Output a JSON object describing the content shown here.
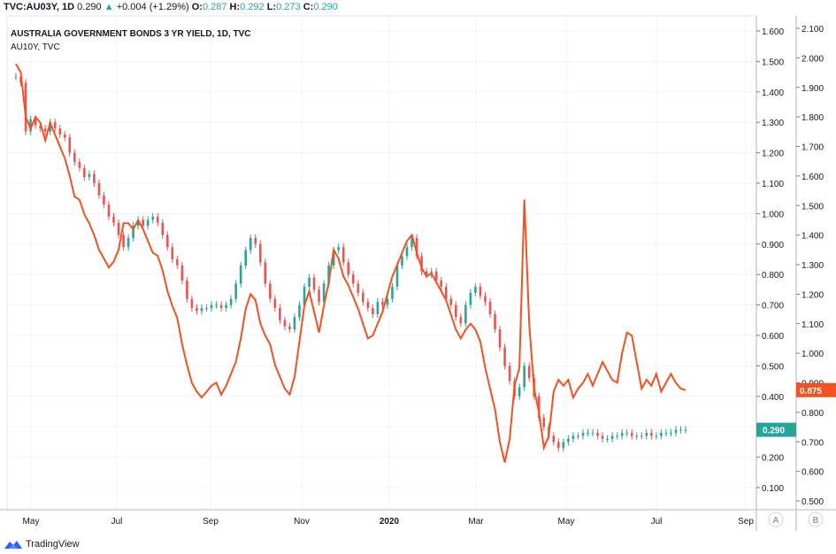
{
  "header": {
    "symbol": "TVC:AU03Y, 1D",
    "last": "0.290",
    "arrow": "▲",
    "change": "+0.004 (+1.29%)",
    "o_label": "O:",
    "o": "0.287",
    "h_label": "H:",
    "h": "0.292",
    "l_label": "L:",
    "l": "0.273",
    "c_label": "C:",
    "c": "0.290"
  },
  "legend": {
    "title": "AUSTRALIA GOVERNMENT BONDS 3 YR YIELD, 1D, TVC",
    "compare": "AU10Y, TVC"
  },
  "footer": {
    "brand": "TradingView"
  },
  "chart_data": {
    "type": "line",
    "x_ticks": [
      "May",
      "Jul",
      "Sep",
      "Nov",
      "2020",
      "Mar",
      "May",
      "Jul",
      "Sep"
    ],
    "scale_a_label": "A",
    "scale_b_label": "B",
    "left_axis": {
      "ticks": [
        "0.100",
        "0.200",
        "0.300",
        "0.400",
        "0.500",
        "0.600",
        "0.700",
        "0.800",
        "0.900",
        "1.000",
        "1.100",
        "1.200",
        "1.300",
        "1.400",
        "1.500",
        "1.600"
      ],
      "range": [
        0.05,
        1.65
      ]
    },
    "right_axis": {
      "ticks": [
        "0.500",
        "0.600",
        "0.700",
        "0.800",
        "0.900",
        "1.000",
        "1.100",
        "1.200",
        "1.300",
        "1.400",
        "1.500",
        "1.600",
        "1.700",
        "1.800",
        "1.900",
        "2.000",
        "2.100"
      ],
      "range": [
        0.475,
        2.125
      ]
    },
    "price_labels": {
      "au10y": {
        "value": "0.875",
        "color": "#f4511e"
      },
      "au03y": {
        "value": "0.290",
        "color": "#26a69a"
      }
    },
    "series": [
      {
        "name": "AU03Y",
        "color_up": "#26a69a",
        "color_down": "#ef5350",
        "axis": "left",
        "points": [
          [
            0,
            1.45
          ],
          [
            2,
            1.43
          ],
          [
            4,
            1.27
          ],
          [
            6,
            1.31
          ],
          [
            8,
            1.29
          ],
          [
            10,
            1.28
          ],
          [
            12,
            1.27
          ],
          [
            14,
            1.3
          ],
          [
            16,
            1.28
          ],
          [
            18,
            1.26
          ],
          [
            20,
            1.25
          ],
          [
            22,
            1.2
          ],
          [
            24,
            1.17
          ],
          [
            26,
            1.15
          ],
          [
            28,
            1.12
          ],
          [
            30,
            1.13
          ],
          [
            32,
            1.1
          ],
          [
            34,
            1.06
          ],
          [
            36,
            1.03
          ],
          [
            38,
            0.99
          ],
          [
            40,
            0.97
          ],
          [
            42,
            0.93
          ],
          [
            44,
            0.89
          ],
          [
            46,
            0.92
          ],
          [
            48,
            0.96
          ],
          [
            50,
            0.98
          ],
          [
            52,
            0.96
          ],
          [
            54,
            0.98
          ],
          [
            56,
            0.99
          ],
          [
            58,
            0.97
          ],
          [
            60,
            0.93
          ],
          [
            62,
            0.89
          ],
          [
            64,
            0.85
          ],
          [
            66,
            0.83
          ],
          [
            68,
            0.78
          ],
          [
            70,
            0.72
          ],
          [
            72,
            0.69
          ],
          [
            74,
            0.68
          ],
          [
            76,
            0.69
          ],
          [
            78,
            0.69
          ],
          [
            80,
            0.7
          ],
          [
            82,
            0.7
          ],
          [
            84,
            0.69
          ],
          [
            86,
            0.7
          ],
          [
            88,
            0.72
          ],
          [
            90,
            0.77
          ],
          [
            92,
            0.83
          ],
          [
            94,
            0.88
          ],
          [
            96,
            0.92
          ],
          [
            98,
            0.9
          ],
          [
            100,
            0.84
          ],
          [
            102,
            0.77
          ],
          [
            104,
            0.72
          ],
          [
            106,
            0.69
          ],
          [
            108,
            0.65
          ],
          [
            110,
            0.63
          ],
          [
            112,
            0.62
          ],
          [
            114,
            0.66
          ],
          [
            116,
            0.7
          ],
          [
            118,
            0.76
          ],
          [
            120,
            0.79
          ],
          [
            122,
            0.75
          ],
          [
            124,
            0.71
          ],
          [
            126,
            0.77
          ],
          [
            128,
            0.83
          ],
          [
            130,
            0.88
          ],
          [
            132,
            0.89
          ],
          [
            134,
            0.84
          ],
          [
            136,
            0.8
          ],
          [
            138,
            0.77
          ],
          [
            140,
            0.74
          ],
          [
            142,
            0.71
          ],
          [
            144,
            0.69
          ],
          [
            146,
            0.67
          ],
          [
            148,
            0.71
          ],
          [
            150,
            0.7
          ],
          [
            152,
            0.72
          ],
          [
            154,
            0.76
          ],
          [
            156,
            0.83
          ],
          [
            158,
            0.86
          ],
          [
            160,
            0.89
          ],
          [
            162,
            0.92
          ],
          [
            164,
            0.86
          ],
          [
            166,
            0.81
          ],
          [
            168,
            0.8
          ],
          [
            170,
            0.81
          ],
          [
            172,
            0.78
          ],
          [
            174,
            0.76
          ],
          [
            176,
            0.72
          ],
          [
            178,
            0.7
          ],
          [
            180,
            0.66
          ],
          [
            182,
            0.64
          ],
          [
            184,
            0.7
          ],
          [
            186,
            0.74
          ],
          [
            188,
            0.76
          ],
          [
            190,
            0.73
          ],
          [
            192,
            0.71
          ],
          [
            194,
            0.67
          ],
          [
            196,
            0.62
          ],
          [
            198,
            0.56
          ],
          [
            200,
            0.5
          ],
          [
            202,
            0.45
          ],
          [
            204,
            0.4
          ],
          [
            206,
            0.43
          ],
          [
            208,
            0.5
          ],
          [
            210,
            0.46
          ],
          [
            212,
            0.4
          ],
          [
            214,
            0.33
          ],
          [
            216,
            0.3
          ],
          [
            218,
            0.27
          ],
          [
            220,
            0.25
          ],
          [
            222,
            0.23
          ],
          [
            224,
            0.25
          ],
          [
            226,
            0.26
          ],
          [
            228,
            0.27
          ],
          [
            230,
            0.27
          ],
          [
            232,
            0.28
          ],
          [
            234,
            0.28
          ],
          [
            236,
            0.28
          ],
          [
            238,
            0.27
          ],
          [
            240,
            0.26
          ],
          [
            242,
            0.26
          ],
          [
            244,
            0.27
          ],
          [
            246,
            0.27
          ],
          [
            248,
            0.28
          ],
          [
            250,
            0.28
          ],
          [
            252,
            0.27
          ],
          [
            254,
            0.27
          ],
          [
            256,
            0.27
          ],
          [
            258,
            0.28
          ],
          [
            260,
            0.27
          ],
          [
            262,
            0.27
          ],
          [
            264,
            0.28
          ],
          [
            266,
            0.28
          ],
          [
            268,
            0.28
          ],
          [
            270,
            0.29
          ],
          [
            272,
            0.29
          ],
          [
            274,
            0.29
          ]
        ]
      },
      {
        "name": "AU10Y",
        "color": "#f4511e",
        "axis": "right",
        "points": [
          [
            0,
            1.98
          ],
          [
            2,
            1.95
          ],
          [
            4,
            1.8
          ],
          [
            6,
            1.76
          ],
          [
            8,
            1.8
          ],
          [
            10,
            1.78
          ],
          [
            12,
            1.72
          ],
          [
            14,
            1.78
          ],
          [
            16,
            1.74
          ],
          [
            18,
            1.7
          ],
          [
            20,
            1.66
          ],
          [
            22,
            1.6
          ],
          [
            24,
            1.53
          ],
          [
            26,
            1.52
          ],
          [
            28,
            1.47
          ],
          [
            30,
            1.44
          ],
          [
            32,
            1.4
          ],
          [
            34,
            1.35
          ],
          [
            36,
            1.32
          ],
          [
            38,
            1.29
          ],
          [
            40,
            1.31
          ],
          [
            42,
            1.35
          ],
          [
            44,
            1.44
          ],
          [
            46,
            1.44
          ],
          [
            48,
            1.42
          ],
          [
            50,
            1.45
          ],
          [
            52,
            1.42
          ],
          [
            54,
            1.38
          ],
          [
            56,
            1.34
          ],
          [
            58,
            1.33
          ],
          [
            60,
            1.28
          ],
          [
            62,
            1.21
          ],
          [
            64,
            1.16
          ],
          [
            66,
            1.12
          ],
          [
            68,
            1.03
          ],
          [
            70,
            0.96
          ],
          [
            72,
            0.9
          ],
          [
            74,
            0.87
          ],
          [
            76,
            0.85
          ],
          [
            78,
            0.87
          ],
          [
            80,
            0.89
          ],
          [
            82,
            0.9
          ],
          [
            84,
            0.86
          ],
          [
            86,
            0.89
          ],
          [
            88,
            0.93
          ],
          [
            90,
            0.97
          ],
          [
            92,
            1.05
          ],
          [
            94,
            1.15
          ],
          [
            96,
            1.2
          ],
          [
            98,
            1.18
          ],
          [
            100,
            1.1
          ],
          [
            102,
            1.06
          ],
          [
            104,
            1.03
          ],
          [
            106,
            0.96
          ],
          [
            108,
            0.92
          ],
          [
            110,
            0.88
          ],
          [
            112,
            0.86
          ],
          [
            114,
            0.92
          ],
          [
            116,
            1.04
          ],
          [
            118,
            1.16
          ],
          [
            120,
            1.21
          ],
          [
            122,
            1.14
          ],
          [
            124,
            1.07
          ],
          [
            126,
            1.16
          ],
          [
            128,
            1.24
          ],
          [
            130,
            1.35
          ],
          [
            132,
            1.32
          ],
          [
            134,
            1.26
          ],
          [
            136,
            1.23
          ],
          [
            138,
            1.19
          ],
          [
            140,
            1.15
          ],
          [
            142,
            1.1
          ],
          [
            144,
            1.05
          ],
          [
            146,
            1.06
          ],
          [
            148,
            1.1
          ],
          [
            150,
            1.14
          ],
          [
            152,
            1.2
          ],
          [
            154,
            1.26
          ],
          [
            156,
            1.3
          ],
          [
            158,
            1.34
          ],
          [
            160,
            1.38
          ],
          [
            162,
            1.4
          ],
          [
            164,
            1.34
          ],
          [
            166,
            1.29
          ],
          [
            168,
            1.26
          ],
          [
            170,
            1.27
          ],
          [
            172,
            1.24
          ],
          [
            174,
            1.21
          ],
          [
            176,
            1.18
          ],
          [
            178,
            1.13
          ],
          [
            180,
            1.08
          ],
          [
            182,
            1.05
          ],
          [
            184,
            1.08
          ],
          [
            186,
            1.1
          ],
          [
            188,
            1.08
          ],
          [
            190,
            1.04
          ],
          [
            192,
            0.95
          ],
          [
            194,
            0.88
          ],
          [
            196,
            0.81
          ],
          [
            198,
            0.7
          ],
          [
            200,
            0.63
          ],
          [
            202,
            0.71
          ],
          [
            204,
            0.89
          ],
          [
            206,
            0.95
          ],
          [
            208,
            1.52
          ],
          [
            210,
            1.1
          ],
          [
            212,
            0.88
          ],
          [
            214,
            0.8
          ],
          [
            216,
            0.68
          ],
          [
            218,
            0.72
          ],
          [
            220,
            0.87
          ],
          [
            222,
            0.91
          ],
          [
            224,
            0.89
          ],
          [
            226,
            0.91
          ],
          [
            228,
            0.85
          ],
          [
            230,
            0.88
          ],
          [
            232,
            0.9
          ],
          [
            234,
            0.93
          ],
          [
            236,
            0.89
          ],
          [
            238,
            0.93
          ],
          [
            240,
            0.97
          ],
          [
            242,
            0.94
          ],
          [
            244,
            0.91
          ],
          [
            246,
            0.9
          ],
          [
            248,
            1.0
          ],
          [
            250,
            1.07
          ],
          [
            252,
            1.06
          ],
          [
            254,
            0.97
          ],
          [
            256,
            0.88
          ],
          [
            258,
            0.91
          ],
          [
            260,
            0.89
          ],
          [
            262,
            0.93
          ],
          [
            264,
            0.87
          ],
          [
            266,
            0.9
          ],
          [
            268,
            0.93
          ],
          [
            270,
            0.9
          ],
          [
            272,
            0.88
          ],
          [
            274,
            0.875
          ]
        ]
      }
    ]
  }
}
